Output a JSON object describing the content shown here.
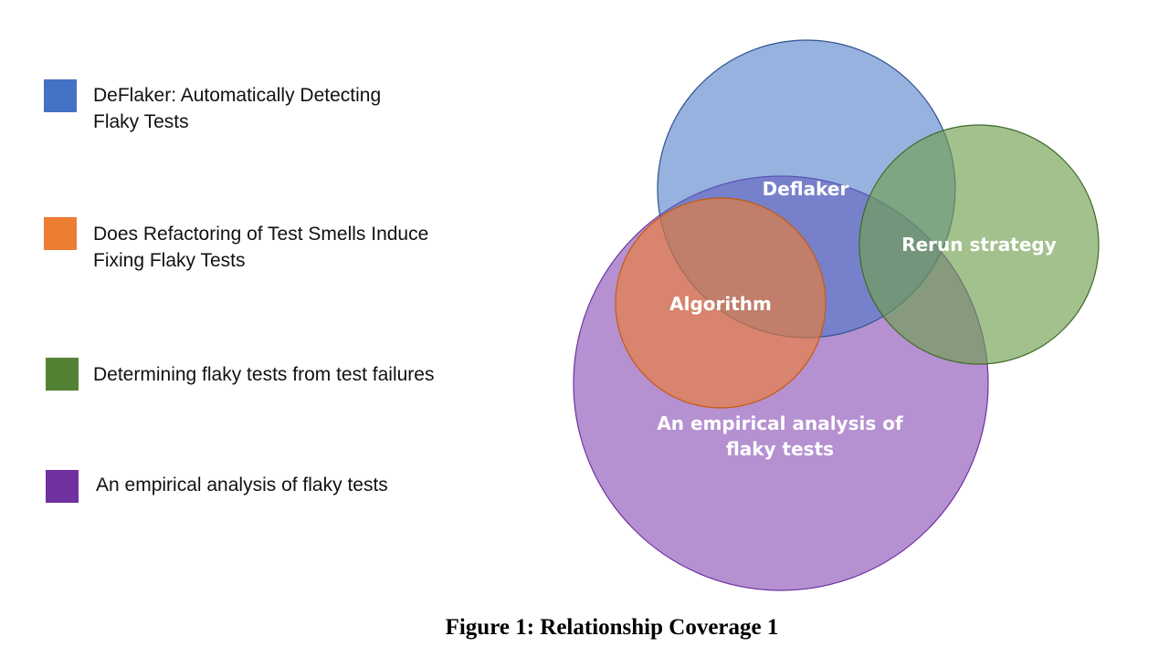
{
  "legend": [
    {
      "label": "DeFlaker: Automatically Detecting\nFlaky Tests",
      "color": "#4472C4"
    },
    {
      "label": "Does Refactoring of Test Smells Induce\nFixing Flaky Tests",
      "color": "#ED7D31"
    },
    {
      "label": "Determining flaky tests from test failures",
      "color": "#548235"
    },
    {
      "label": "An empirical analysis of flaky tests",
      "color": "#7030A0"
    }
  ],
  "circles": [
    {
      "name": "empirical-circle",
      "fill": "#9966BF",
      "stroke": "#7030A0"
    },
    {
      "name": "deflaker-circle",
      "fill": "#4472C4",
      "stroke": "#2F528F"
    },
    {
      "name": "algorithm-circle",
      "fill": "#ED7D31",
      "stroke": "#C55A11"
    },
    {
      "name": "rerun-circle",
      "fill": "#70A050",
      "stroke": "#3F6A27"
    }
  ],
  "region_labels": {
    "deflaker": "Deflaker",
    "rerun": "Rerun strategy",
    "algorithm": "Algorithm",
    "empirical_line1": "An empirical analysis of",
    "empirical_line2": "flaky tests"
  },
  "caption": "Figure 1: Relationship Coverage 1"
}
